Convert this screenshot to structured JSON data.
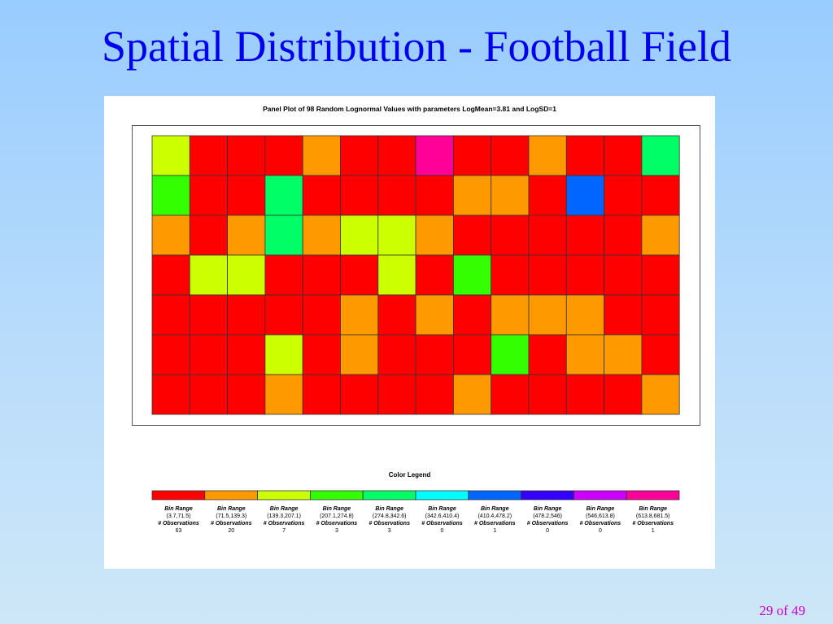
{
  "slide": {
    "title": "Spatial Distribution - Football Field",
    "page_number": "29 of 49"
  },
  "chart_data": {
    "type": "heatmap",
    "title": "Panel Plot of 98 Random Lognormal Values with parameters LogMean=3.81 and LogSD=1",
    "rows": 7,
    "cols": 14,
    "grid": [
      [
        2,
        0,
        0,
        0,
        1,
        0,
        0,
        9,
        0,
        0,
        1,
        0,
        0,
        4
      ],
      [
        3,
        0,
        0,
        4,
        0,
        0,
        0,
        0,
        1,
        1,
        0,
        6,
        0,
        0
      ],
      [
        1,
        0,
        1,
        4,
        1,
        2,
        2,
        1,
        0,
        0,
        0,
        0,
        0,
        1
      ],
      [
        0,
        2,
        2,
        0,
        0,
        0,
        2,
        0,
        3,
        0,
        0,
        0,
        0,
        0
      ],
      [
        0,
        0,
        0,
        0,
        0,
        1,
        0,
        1,
        0,
        1,
        1,
        1,
        0,
        0
      ],
      [
        0,
        0,
        0,
        2,
        0,
        1,
        0,
        0,
        0,
        3,
        0,
        1,
        1,
        0
      ],
      [
        0,
        0,
        0,
        1,
        0,
        0,
        0,
        0,
        1,
        0,
        0,
        0,
        0,
        1
      ]
    ],
    "legend": {
      "title": "Color Legend",
      "bin_label": "Bin Range",
      "obs_label": "# Observations",
      "bins": [
        {
          "range": "(3.7,71.5)",
          "count": "63",
          "color": "#ff0000"
        },
        {
          "range": "(71.5,139.3)",
          "count": "20",
          "color": "#ff9900"
        },
        {
          "range": "(139.3,207.1)",
          "count": "7",
          "color": "#ccff00"
        },
        {
          "range": "(207.1,274.8)",
          "count": "3",
          "color": "#33ff00"
        },
        {
          "range": "(274.8,342.6)",
          "count": "3",
          "color": "#00ff66"
        },
        {
          "range": "(342.6,410.4)",
          "count": "0",
          "color": "#00ffff"
        },
        {
          "range": "(410.4,478.2)",
          "count": "1",
          "color": "#0066ff"
        },
        {
          "range": "(478.2,546)",
          "count": "0",
          "color": "#3300ff"
        },
        {
          "range": "(546,613.8)",
          "count": "0",
          "color": "#cc00ff"
        },
        {
          "range": "(613.8,681.5)",
          "count": "1",
          "color": "#ff0099"
        }
      ]
    }
  }
}
